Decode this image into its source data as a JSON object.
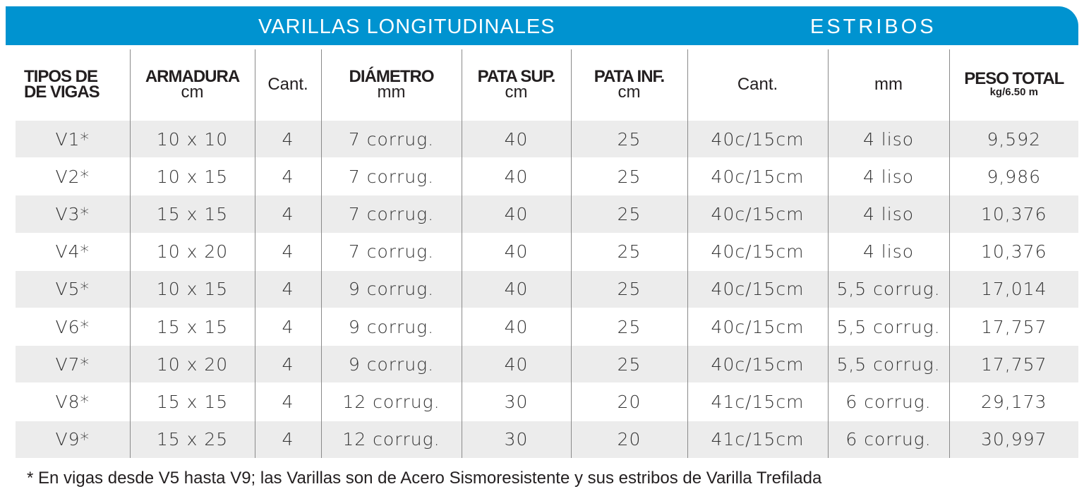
{
  "banner": {
    "left_title": "VARILLAS LONGITUDINALES",
    "right_title": "ESTRIBOS",
    "color": "#0093d0"
  },
  "headers": {
    "tipos": [
      "TIPOS DE",
      "DE VIGAS"
    ],
    "armadura": [
      "ARMADURA",
      "cm"
    ],
    "cant": "Cant.",
    "diametro": [
      "DIÁMETRO",
      "mm"
    ],
    "pata_sup": [
      "PATA SUP.",
      "cm"
    ],
    "pata_inf": [
      "PATA INF.",
      "cm"
    ],
    "estribos_cant": "Cant.",
    "estribos_mm": "mm",
    "peso_total": [
      "PESO TOTAL",
      "kg/6.50 m"
    ]
  },
  "rows": [
    {
      "tipo": "V1*",
      "armadura": "10 x 10",
      "cant": "4",
      "diametro": "7 corrug.",
      "pata_sup": "40",
      "pata_inf": "25",
      "estribos_cant": "40c/15cm",
      "estribos_mm": "4 liso",
      "peso": "9,592"
    },
    {
      "tipo": "V2*",
      "armadura": "10 x 15",
      "cant": "4",
      "diametro": "7 corrug.",
      "pata_sup": "40",
      "pata_inf": "25",
      "estribos_cant": "40c/15cm",
      "estribos_mm": "4 liso",
      "peso": "9,986"
    },
    {
      "tipo": "V3*",
      "armadura": "15 x 15",
      "cant": "4",
      "diametro": "7 corrug.",
      "pata_sup": "40",
      "pata_inf": "25",
      "estribos_cant": "40c/15cm",
      "estribos_mm": "4 liso",
      "peso": "10,376"
    },
    {
      "tipo": "V4*",
      "armadura": "10 x 20",
      "cant": "4",
      "diametro": "7 corrug.",
      "pata_sup": "40",
      "pata_inf": "25",
      "estribos_cant": "40c/15cm",
      "estribos_mm": "4 liso",
      "peso": "10,376"
    },
    {
      "tipo": "V5*",
      "armadura": "10 x 15",
      "cant": "4",
      "diametro": "9 corrug.",
      "pata_sup": "40",
      "pata_inf": "25",
      "estribos_cant": "40c/15cm",
      "estribos_mm": "5,5 corrug.",
      "peso": "17,014"
    },
    {
      "tipo": "V6*",
      "armadura": "15 x 15",
      "cant": "4",
      "diametro": "9 corrug.",
      "pata_sup": "40",
      "pata_inf": "25",
      "estribos_cant": "40c/15cm",
      "estribos_mm": "5,5 corrug.",
      "peso": "17,757"
    },
    {
      "tipo": "V7*",
      "armadura": "10 x 20",
      "cant": "4",
      "diametro": "9 corrug.",
      "pata_sup": "40",
      "pata_inf": "25",
      "estribos_cant": "40c/15cm",
      "estribos_mm": "5,5 corrug.",
      "peso": "17,757"
    },
    {
      "tipo": "V8*",
      "armadura": "15 x 15",
      "cant": "4",
      "diametro": "12 corrug.",
      "pata_sup": "30",
      "pata_inf": "20",
      "estribos_cant": "41c/15cm",
      "estribos_mm": "6 corrug.",
      "peso": "29,173"
    },
    {
      "tipo": "V9*",
      "armadura": "15 x 25",
      "cant": "4",
      "diametro": "12 corrug.",
      "pata_sup": "30",
      "pata_inf": "20",
      "estribos_cant": "41c/15cm",
      "estribos_mm": "6 corrug.",
      "peso": "30,997"
    }
  ],
  "footnote": "* En vigas desde V5 hasta V9; las Varillas son de Acero Sismoresistente y sus estribos de Varilla Trefilada"
}
